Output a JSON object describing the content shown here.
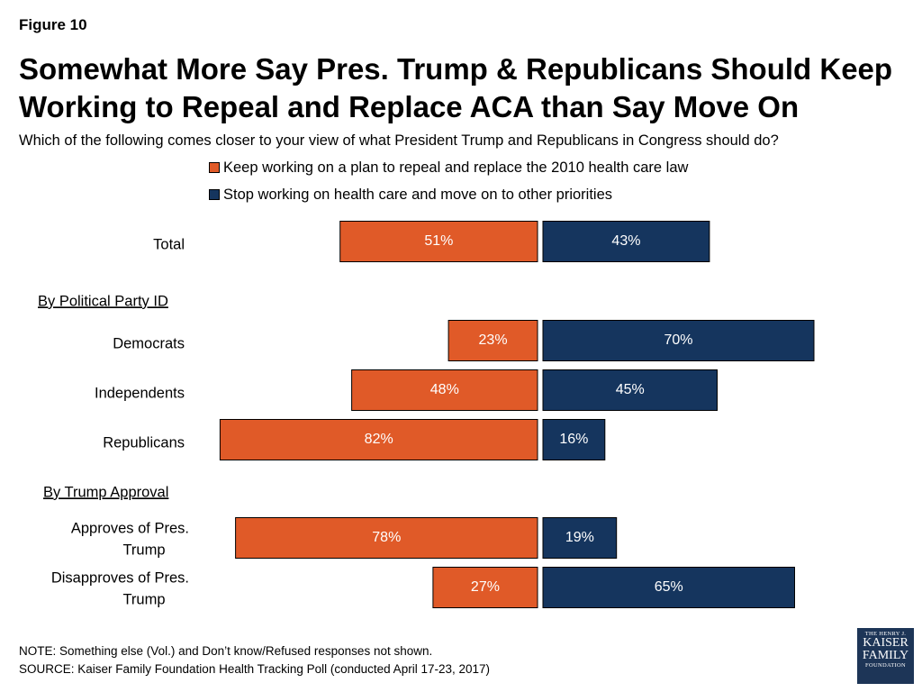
{
  "figure_label": "Figure 10",
  "title": "Somewhat More Say Pres. Trump & Republicans Should Keep Working to Repeal and Replace ACA than Say Move On",
  "subtitle": "Which of the following comes closer to your view of what President Trump and Republicans in Congress should do?",
  "colors": {
    "keep": "#e05a28",
    "stop": "#15355e"
  },
  "legend": [
    {
      "label": "Keep working on a plan to repeal and replace the 2010 health care law",
      "color": "#e05a28"
    },
    {
      "label": "Stop working on health care and move on to other priorities",
      "color": "#15355e"
    }
  ],
  "chart_data": {
    "type": "bar",
    "orientation": "horizontal-diverging",
    "units": "%",
    "groups": [
      {
        "header": "",
        "categories": [
          "Total"
        ]
      },
      {
        "header": "By Political Party ID",
        "categories": [
          "Democrats",
          "Independents",
          "Republicans"
        ]
      },
      {
        "header": "By Trump Approval",
        "categories": [
          "Approves of Pres. Trump",
          "Disapproves of Pres. Trump"
        ]
      }
    ],
    "categories": [
      "Total",
      "Democrats",
      "Independents",
      "Republicans",
      "Approves of Pres. Trump",
      "Disapproves of Pres. Trump"
    ],
    "series": [
      {
        "name": "Keep working on a plan to repeal and replace the 2010 health care law",
        "values": [
          51,
          23,
          48,
          82,
          78,
          27
        ]
      },
      {
        "name": "Stop working on health care and move on to other priorities",
        "values": [
          43,
          70,
          45,
          16,
          19,
          65
        ]
      }
    ],
    "legend_position": "top",
    "grid": false
  },
  "notes": {
    "note": "NOTE: Something else (Vol.) and Don’t know/Refused responses not shown.",
    "source": "SOURCE: Kaiser Family Foundation Health Tracking Poll (conducted April 17-23, 2017)"
  },
  "logo": {
    "line1": "THE HENRY J.",
    "line2": "KAISER",
    "line3": "FAMILY",
    "line4": "FOUNDATION"
  }
}
